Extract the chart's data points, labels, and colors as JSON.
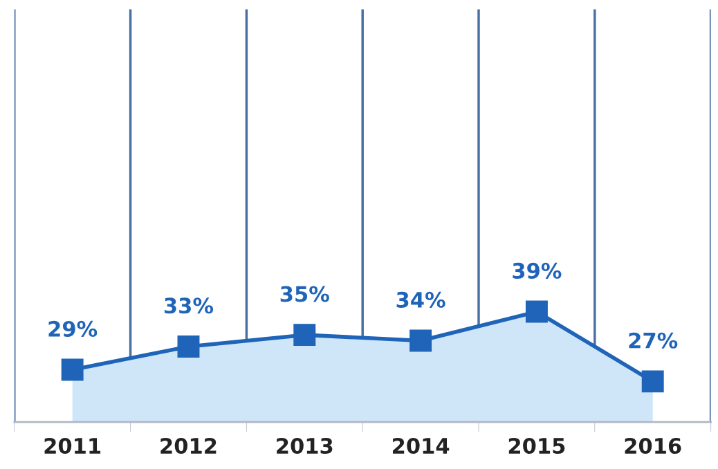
{
  "chart_data": {
    "type": "area",
    "categories": [
      "2011",
      "2012",
      "2013",
      "2014",
      "2015",
      "2016"
    ],
    "series": [
      {
        "color": "#1f64b8",
        "values": [
          29,
          33,
          35,
          34,
          39,
          27
        ],
        "value_labels": [
          "29%",
          "33%",
          "35%",
          "34%",
          "39%",
          "27%"
        ]
      }
    ],
    "ylim": [
      20,
      91
    ],
    "tick_labels": "x",
    "grid": "x",
    "marker": "square",
    "line_style": "solid",
    "legend": false
  }
}
